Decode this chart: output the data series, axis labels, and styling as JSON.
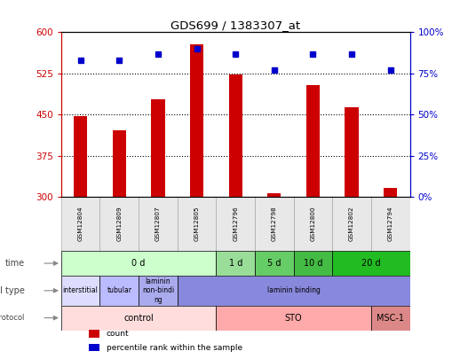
{
  "title": "GDS699 / 1383307_at",
  "samples": [
    "GSM12804",
    "GSM12809",
    "GSM12807",
    "GSM12805",
    "GSM12796",
    "GSM12798",
    "GSM12800",
    "GSM12802",
    "GSM12794"
  ],
  "counts": [
    447,
    422,
    478,
    578,
    524,
    307,
    504,
    464,
    316
  ],
  "percentiles": [
    83,
    83,
    87,
    90,
    87,
    77,
    87,
    87,
    77
  ],
  "count_baseline": 300,
  "ylim_left": [
    300,
    600
  ],
  "ylim_right": [
    0,
    100
  ],
  "yticks_left": [
    300,
    375,
    450,
    525,
    600
  ],
  "yticks_right": [
    0,
    25,
    50,
    75,
    100
  ],
  "bar_color": "#cc0000",
  "dot_color": "#0000cc",
  "left_axis_color": "#cc0000",
  "right_axis_color": "#0000cc",
  "time_groups": [
    {
      "label": "0 d",
      "start": 0,
      "end": 4,
      "color": "#ccffcc"
    },
    {
      "label": "1 d",
      "start": 4,
      "end": 5,
      "color": "#99dd99"
    },
    {
      "label": "5 d",
      "start": 5,
      "end": 6,
      "color": "#66cc66"
    },
    {
      "label": "10 d",
      "start": 6,
      "end": 7,
      "color": "#44bb44"
    },
    {
      "label": "20 d",
      "start": 7,
      "end": 9,
      "color": "#22bb22"
    }
  ],
  "cell_type_groups": [
    {
      "label": "interstitial",
      "start": 0,
      "end": 1,
      "color": "#ddddff"
    },
    {
      "label": "tubular",
      "start": 1,
      "end": 2,
      "color": "#bbbbff"
    },
    {
      "label": "laminin\nnon-bindi\nng",
      "start": 2,
      "end": 3,
      "color": "#aaaaee"
    },
    {
      "label": "laminin binding",
      "start": 3,
      "end": 9,
      "color": "#8888dd"
    }
  ],
  "growth_protocol_groups": [
    {
      "label": "control",
      "start": 0,
      "end": 4,
      "color": "#ffdddd"
    },
    {
      "label": "STO",
      "start": 4,
      "end": 8,
      "color": "#ffaaaa"
    },
    {
      "label": "MSC-1",
      "start": 8,
      "end": 9,
      "color": "#dd8888"
    }
  ],
  "legend_items": [
    {
      "color": "#cc0000",
      "label": "count"
    },
    {
      "color": "#0000cc",
      "label": "percentile rank within the sample"
    }
  ],
  "hlines": [
    375,
    450,
    525
  ],
  "sample_box_color": "#e8e8e8",
  "sample_box_edge": "#aaaaaa"
}
